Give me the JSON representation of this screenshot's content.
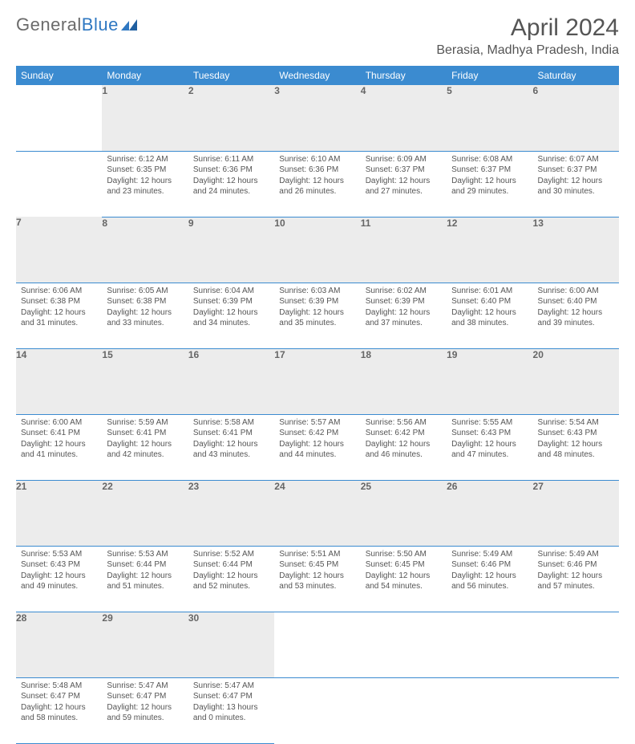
{
  "logo": {
    "text_gray": "General",
    "text_blue": "Blue"
  },
  "title": "April 2024",
  "location": "Berasia, Madhya Pradesh, India",
  "colors": {
    "header_bg": "#3b8bd0",
    "header_text": "#ffffff",
    "daynum_bg": "#ececec",
    "row_border": "#3b8bd0",
    "body_text": "#555555",
    "logo_gray": "#6a6a6a",
    "logo_blue": "#2f78c2",
    "page_bg": "#ffffff"
  },
  "day_headers": [
    "Sunday",
    "Monday",
    "Tuesday",
    "Wednesday",
    "Thursday",
    "Friday",
    "Saturday"
  ],
  "weeks": [
    {
      "nums": [
        "",
        "1",
        "2",
        "3",
        "4",
        "5",
        "6"
      ],
      "cells": [
        null,
        {
          "sunrise": "6:12 AM",
          "sunset": "6:35 PM",
          "daylight": "12 hours and 23 minutes."
        },
        {
          "sunrise": "6:11 AM",
          "sunset": "6:36 PM",
          "daylight": "12 hours and 24 minutes."
        },
        {
          "sunrise": "6:10 AM",
          "sunset": "6:36 PM",
          "daylight": "12 hours and 26 minutes."
        },
        {
          "sunrise": "6:09 AM",
          "sunset": "6:37 PM",
          "daylight": "12 hours and 27 minutes."
        },
        {
          "sunrise": "6:08 AM",
          "sunset": "6:37 PM",
          "daylight": "12 hours and 29 minutes."
        },
        {
          "sunrise": "6:07 AM",
          "sunset": "6:37 PM",
          "daylight": "12 hours and 30 minutes."
        }
      ]
    },
    {
      "nums": [
        "7",
        "8",
        "9",
        "10",
        "11",
        "12",
        "13"
      ],
      "cells": [
        {
          "sunrise": "6:06 AM",
          "sunset": "6:38 PM",
          "daylight": "12 hours and 31 minutes."
        },
        {
          "sunrise": "6:05 AM",
          "sunset": "6:38 PM",
          "daylight": "12 hours and 33 minutes."
        },
        {
          "sunrise": "6:04 AM",
          "sunset": "6:39 PM",
          "daylight": "12 hours and 34 minutes."
        },
        {
          "sunrise": "6:03 AM",
          "sunset": "6:39 PM",
          "daylight": "12 hours and 35 minutes."
        },
        {
          "sunrise": "6:02 AM",
          "sunset": "6:39 PM",
          "daylight": "12 hours and 37 minutes."
        },
        {
          "sunrise": "6:01 AM",
          "sunset": "6:40 PM",
          "daylight": "12 hours and 38 minutes."
        },
        {
          "sunrise": "6:00 AM",
          "sunset": "6:40 PM",
          "daylight": "12 hours and 39 minutes."
        }
      ]
    },
    {
      "nums": [
        "14",
        "15",
        "16",
        "17",
        "18",
        "19",
        "20"
      ],
      "cells": [
        {
          "sunrise": "6:00 AM",
          "sunset": "6:41 PM",
          "daylight": "12 hours and 41 minutes."
        },
        {
          "sunrise": "5:59 AM",
          "sunset": "6:41 PM",
          "daylight": "12 hours and 42 minutes."
        },
        {
          "sunrise": "5:58 AM",
          "sunset": "6:41 PM",
          "daylight": "12 hours and 43 minutes."
        },
        {
          "sunrise": "5:57 AM",
          "sunset": "6:42 PM",
          "daylight": "12 hours and 44 minutes."
        },
        {
          "sunrise": "5:56 AM",
          "sunset": "6:42 PM",
          "daylight": "12 hours and 46 minutes."
        },
        {
          "sunrise": "5:55 AM",
          "sunset": "6:43 PM",
          "daylight": "12 hours and 47 minutes."
        },
        {
          "sunrise": "5:54 AM",
          "sunset": "6:43 PM",
          "daylight": "12 hours and 48 minutes."
        }
      ]
    },
    {
      "nums": [
        "21",
        "22",
        "23",
        "24",
        "25",
        "26",
        "27"
      ],
      "cells": [
        {
          "sunrise": "5:53 AM",
          "sunset": "6:43 PM",
          "daylight": "12 hours and 49 minutes."
        },
        {
          "sunrise": "5:53 AM",
          "sunset": "6:44 PM",
          "daylight": "12 hours and 51 minutes."
        },
        {
          "sunrise": "5:52 AM",
          "sunset": "6:44 PM",
          "daylight": "12 hours and 52 minutes."
        },
        {
          "sunrise": "5:51 AM",
          "sunset": "6:45 PM",
          "daylight": "12 hours and 53 minutes."
        },
        {
          "sunrise": "5:50 AM",
          "sunset": "6:45 PM",
          "daylight": "12 hours and 54 minutes."
        },
        {
          "sunrise": "5:49 AM",
          "sunset": "6:46 PM",
          "daylight": "12 hours and 56 minutes."
        },
        {
          "sunrise": "5:49 AM",
          "sunset": "6:46 PM",
          "daylight": "12 hours and 57 minutes."
        }
      ]
    },
    {
      "nums": [
        "28",
        "29",
        "30",
        "",
        "",
        "",
        ""
      ],
      "cells": [
        {
          "sunrise": "5:48 AM",
          "sunset": "6:47 PM",
          "daylight": "12 hours and 58 minutes."
        },
        {
          "sunrise": "5:47 AM",
          "sunset": "6:47 PM",
          "daylight": "12 hours and 59 minutes."
        },
        {
          "sunrise": "5:47 AM",
          "sunset": "6:47 PM",
          "daylight": "13 hours and 0 minutes."
        },
        null,
        null,
        null,
        null
      ]
    }
  ],
  "labels": {
    "sunrise": "Sunrise:",
    "sunset": "Sunset:",
    "daylight": "Daylight:"
  }
}
